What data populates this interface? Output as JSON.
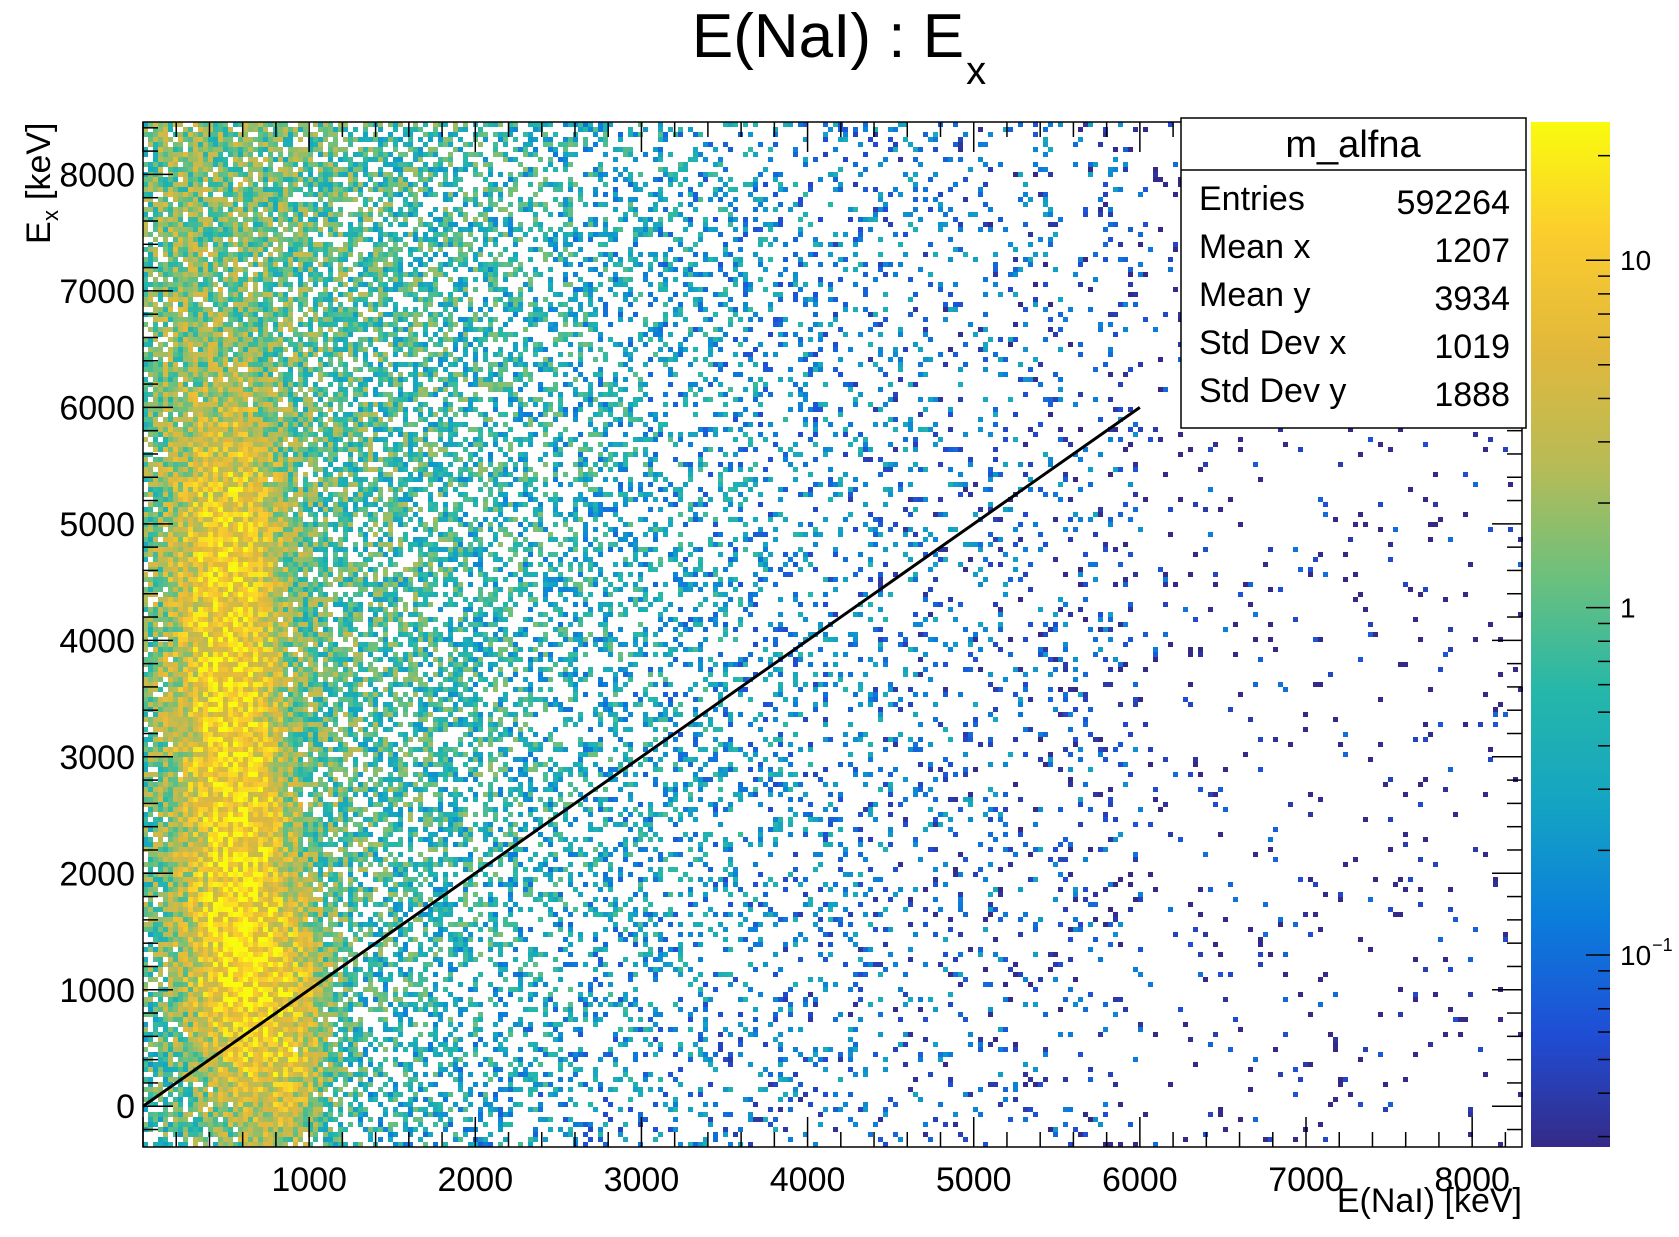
{
  "chart_data": {
    "type": "heatmap",
    "title_main": "E(NaI) : E",
    "title_sub": "x",
    "xlabel": "E(NaI) [keV]",
    "ylabel_main": "E",
    "ylabel_sub": "x",
    "ylabel_unit": "[keV]",
    "xlim": [
      0,
      8300
    ],
    "ylim": [
      -350,
      8450
    ],
    "xticks": [
      1000,
      2000,
      3000,
      4000,
      5000,
      6000,
      7000,
      8000
    ],
    "xtick_labels": [
      "1000",
      "2000",
      "3000",
      "4000",
      "5000",
      "6000",
      "7000",
      "8000"
    ],
    "yticks": [
      0,
      1000,
      2000,
      3000,
      4000,
      5000,
      6000,
      7000,
      8000
    ],
    "ytick_labels": [
      "0",
      "1000",
      "2000",
      "3000",
      "4000",
      "5000",
      "6000",
      "7000",
      "8000"
    ],
    "z_scale": "log",
    "zlim": [
      0.028,
      25
    ],
    "colorbar_ticks": [
      {
        "value": 10,
        "label": "10",
        "sup": ""
      },
      {
        "value": 1,
        "label": "1",
        "sup": ""
      },
      {
        "value": 0.1,
        "label": "10",
        "sup": "−1"
      }
    ],
    "colormap": [
      "#352a87",
      "#1f4ed6",
      "#0b7ddb",
      "#14a4c3",
      "#25b7a9",
      "#6cc07d",
      "#b8bb56",
      "#e1b83c",
      "#fbcc2e",
      "#f9fb0e"
    ],
    "overlay_line": {
      "x": [
        0,
        6000
      ],
      "y": [
        0,
        6000
      ],
      "color": "#000000"
    },
    "density_regions": [
      {
        "x": 550,
        "y": 1200,
        "note": "intense band"
      },
      {
        "x": 570,
        "y": 2100
      },
      {
        "x": 520,
        "y": 3000
      },
      {
        "x": 500,
        "y": 4000
      },
      {
        "x": 500,
        "y": 5000
      },
      {
        "x": 800,
        "y": 750
      }
    ],
    "stats": {
      "title": "m_alfna",
      "rows": [
        {
          "label": "Entries",
          "value": "592264"
        },
        {
          "label": "Mean x",
          "value": "1207"
        },
        {
          "label": "Mean y",
          "value": "3934"
        },
        {
          "label": "Std Dev x",
          "value": "1019"
        },
        {
          "label": "Std Dev y",
          "value": "1888"
        }
      ]
    }
  }
}
